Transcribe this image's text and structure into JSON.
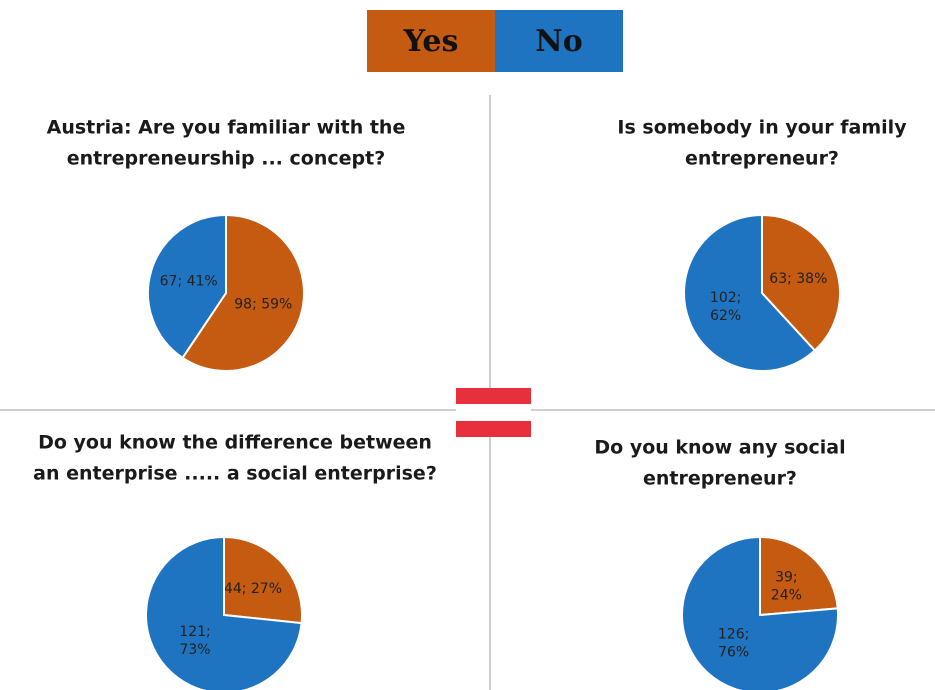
{
  "chart_data": [
    {
      "type": "pie",
      "title": [
        "Austria: Are you familiar with the",
        "entrepreneurship ... concept?"
      ],
      "categories": [
        "Yes",
        "No"
      ],
      "values": [
        98,
        67
      ],
      "value_labels": [
        "98; 59%",
        "67; 41%"
      ],
      "colors": [
        "#c55a11",
        "#1f74c2"
      ]
    },
    {
      "type": "pie",
      "title": [
        "Is somebody  in your family",
        "entrepreneur?"
      ],
      "categories": [
        "Yes",
        "No"
      ],
      "values": [
        63,
        102
      ],
      "value_labels": [
        "63; 38%",
        "102; 62%"
      ],
      "colors": [
        "#c55a11",
        "#1f74c2"
      ]
    },
    {
      "type": "pie",
      "title": [
        "Do you know the difference between",
        "an enterprise ..... a social enterprise?"
      ],
      "categories": [
        "Yes",
        "No"
      ],
      "values": [
        44,
        121
      ],
      "value_labels": [
        "44; 27%",
        "121; 73%"
      ],
      "colors": [
        "#c55a11",
        "#1f74c2"
      ]
    },
    {
      "type": "pie",
      "title": [
        "Do you know any social",
        "entrepreneur?"
      ],
      "categories": [
        "Yes",
        "No"
      ],
      "values": [
        39,
        126
      ],
      "value_labels": [
        "39; 24%",
        "126; 76%"
      ],
      "colors": [
        "#c55a11",
        "#1f74c2"
      ]
    }
  ]
}
